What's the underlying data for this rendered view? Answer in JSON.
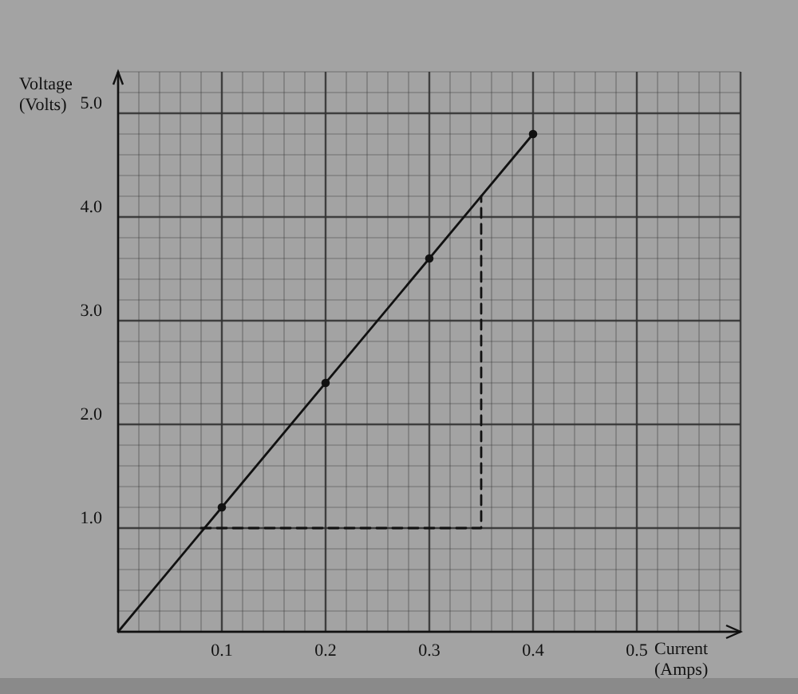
{
  "chart_data": {
    "type": "scatter",
    "xlabel": "Current (Amps)",
    "ylabel": "Voltage (Volts)",
    "xlim": [
      0,
      0.6
    ],
    "ylim": [
      0,
      5.4
    ],
    "xticks": [
      {
        "value": 0.1,
        "label": "0.1"
      },
      {
        "value": 0.2,
        "label": "0.2"
      },
      {
        "value": 0.3,
        "label": "0.3"
      },
      {
        "value": 0.4,
        "label": "0.4"
      },
      {
        "value": 0.5,
        "label": "0.5"
      }
    ],
    "yticks": [
      {
        "value": 1,
        "label": "1.0"
      },
      {
        "value": 2,
        "label": "2.0"
      },
      {
        "value": 3,
        "label": "3.0"
      },
      {
        "value": 4,
        "label": "4.0"
      },
      {
        "value": 5,
        "label": "5.0"
      }
    ],
    "grid": true,
    "series": [
      {
        "color": "#111111",
        "marker": "circle",
        "x": [
          0.1,
          0.2,
          0.3,
          0.4
        ],
        "values": [
          1.2,
          2.4,
          3.6,
          4.8
        ]
      },
      {
        "type": "line",
        "color": "#111111",
        "marker": "none",
        "line_style": "solid",
        "x": [
          0,
          0.4
        ],
        "values": [
          0,
          4.8
        ]
      },
      {
        "type": "line",
        "color": "#111111",
        "marker": "none",
        "line_style": "dashed",
        "x": [
          0.08,
          0.35,
          0.35
        ],
        "values": [
          1,
          1,
          4.2
        ]
      }
    ]
  }
}
